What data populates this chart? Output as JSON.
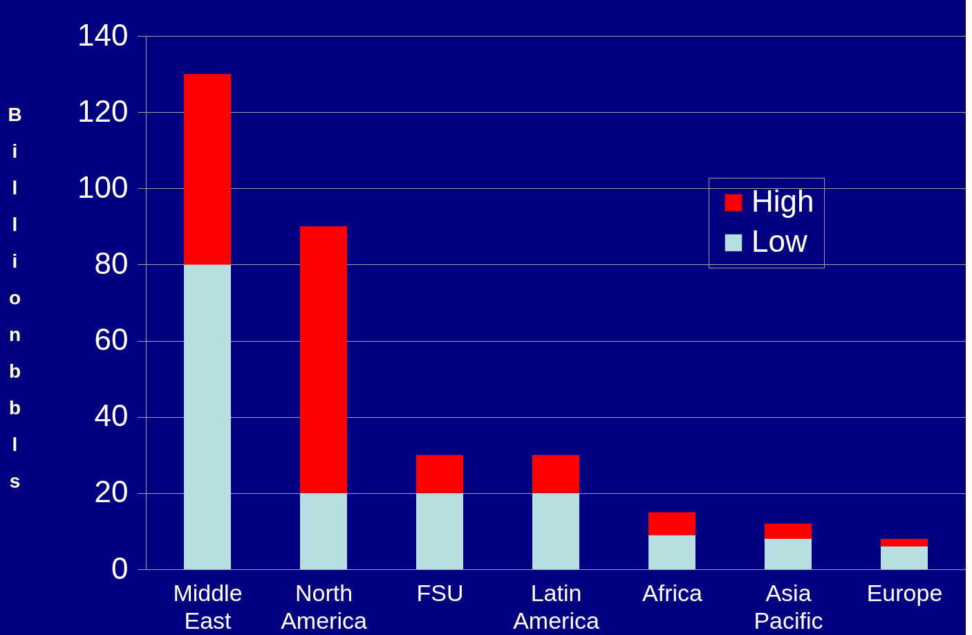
{
  "chart_data": {
    "type": "bar",
    "stacked": true,
    "ylabel": "Billion bbls",
    "categories": [
      "Middle East",
      "North America",
      "FSU",
      "Latin America",
      "Africa",
      "Asia Pacific",
      "Europe"
    ],
    "series": [
      {
        "name": "Low",
        "color": "#b8dfe0",
        "values": [
          80,
          20,
          20,
          20,
          9,
          8,
          6
        ]
      },
      {
        "name": "High",
        "color": "#ff0000",
        "values": [
          50,
          70,
          10,
          10,
          6,
          4,
          2
        ]
      }
    ],
    "ylim": [
      0,
      140
    ],
    "yticks": [
      0,
      20,
      40,
      60,
      80,
      100,
      120,
      140
    ],
    "grid": "y",
    "legend": "top right"
  }
}
